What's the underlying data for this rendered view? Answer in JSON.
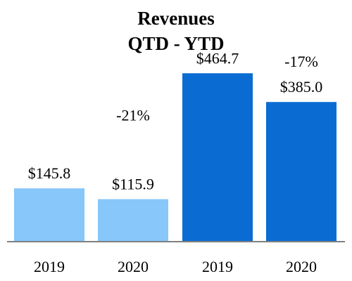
{
  "chart_data": {
    "type": "bar",
    "title": "Revenues",
    "subtitle": "QTD - YTD",
    "categories": [
      "2019",
      "2020",
      "2019",
      "2020"
    ],
    "values": [
      145.8,
      115.9,
      464.7,
      385.0
    ],
    "value_labels": [
      "$145.8",
      "$115.9",
      "$464.7",
      "$385.0"
    ],
    "groups": [
      {
        "bars": [
          0,
          1
        ],
        "change_label": "-21%",
        "color": "#87C7FA"
      },
      {
        "bars": [
          2,
          3
        ],
        "change_label": "-17%",
        "color": "#0A6CD3"
      }
    ],
    "ylim": [
      0,
      510
    ],
    "grid": false,
    "axis_color": "#7F7F7F"
  }
}
